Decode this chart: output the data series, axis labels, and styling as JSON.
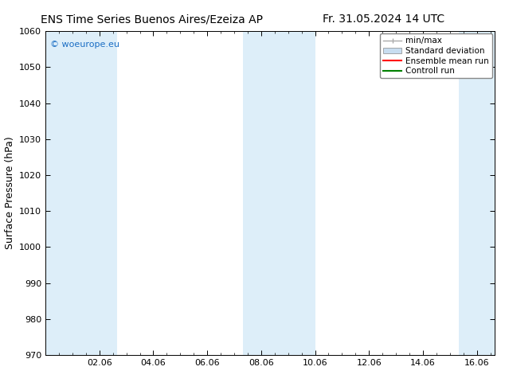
{
  "title_left": "ENS Time Series Buenos Aires/Ezeiza AP",
  "title_right": "Fr. 31.05.2024 14 UTC",
  "ylabel": "Surface Pressure (hPa)",
  "ylim": [
    970,
    1060
  ],
  "yticks": [
    970,
    980,
    990,
    1000,
    1010,
    1020,
    1030,
    1040,
    1050,
    1060
  ],
  "xtick_labels": [
    "02.06",
    "04.06",
    "06.06",
    "08.06",
    "10.06",
    "12.06",
    "14.06",
    "16.06"
  ],
  "xtick_positions": [
    2,
    4,
    6,
    8,
    10,
    12,
    14,
    16
  ],
  "xlim": [
    0.0,
    16.67
  ],
  "shaded_bands": [
    {
      "x_start": 0.0,
      "x_end": 2.67,
      "color": "#ddeef9"
    },
    {
      "x_start": 7.33,
      "x_end": 10.0,
      "color": "#ddeef9"
    },
    {
      "x_start": 15.33,
      "x_end": 16.67,
      "color": "#ddeef9"
    }
  ],
  "watermark_text": "© woeurope.eu",
  "watermark_color": "#1a6ec4",
  "bg_color": "#ffffff",
  "legend_items": [
    {
      "label": "min/max",
      "color": "#aaaaaa",
      "type": "errorbar"
    },
    {
      "label": "Standard deviation",
      "color": "#c8ddf0",
      "type": "rect"
    },
    {
      "label": "Ensemble mean run",
      "color": "#ff0000",
      "type": "line"
    },
    {
      "label": "Controll run",
      "color": "#008000",
      "type": "line"
    }
  ],
  "title_fontsize": 10,
  "ylabel_fontsize": 9,
  "tick_fontsize": 8,
  "legend_fontsize": 7.5,
  "watermark_fontsize": 8
}
